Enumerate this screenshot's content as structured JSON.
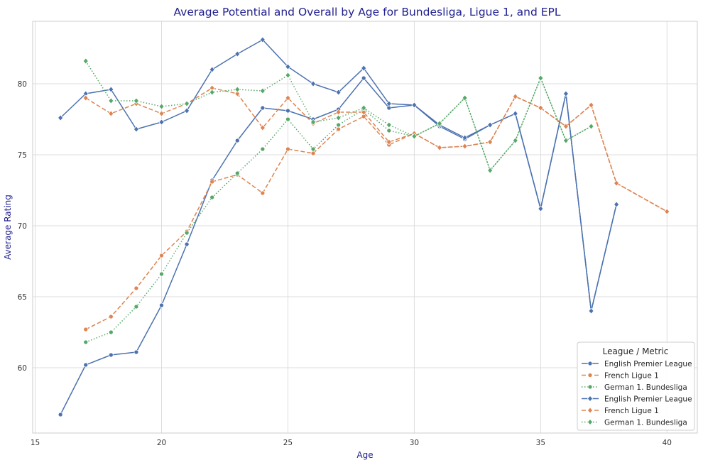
{
  "chart_data": {
    "type": "line",
    "title": "Average Potential and Overall by Age for Bundesliga, Ligue 1, and EPL",
    "xlabel": "Age",
    "ylabel": "Average Rating",
    "xlim": [
      14.9,
      41.2
    ],
    "ylim": [
      55.4,
      84.4
    ],
    "xticks": [
      15,
      20,
      25,
      30,
      35,
      40
    ],
    "yticks": [
      60,
      65,
      70,
      75,
      80
    ],
    "grid": true,
    "legend": {
      "title": "League / Metric",
      "placement": "bottom-right"
    },
    "series": [
      {
        "name": "English Premier League",
        "metric_group": "circle",
        "marker": "circle",
        "line_style": "solid",
        "color": "#4c72b0",
        "points": [
          [
            16,
            56.7
          ],
          [
            17,
            60.2
          ],
          [
            18,
            60.9
          ],
          [
            19,
            61.1
          ],
          [
            20,
            64.4
          ],
          [
            21,
            68.7
          ],
          [
            22,
            73.2
          ],
          [
            23,
            76.0
          ],
          [
            24,
            78.3
          ],
          [
            25,
            78.1
          ],
          [
            26,
            77.5
          ],
          [
            27,
            78.2
          ],
          [
            28,
            80.4
          ],
          [
            29,
            78.3
          ],
          [
            30,
            78.5
          ],
          [
            31,
            77.0
          ],
          [
            32,
            76.1
          ],
          [
            33,
            77.1
          ],
          [
            34,
            77.9
          ],
          [
            35,
            71.2
          ],
          [
            36,
            79.3
          ],
          [
            37,
            64.0
          ],
          [
            38,
            71.5
          ]
        ]
      },
      {
        "name": "French Ligue 1",
        "metric_group": "circle",
        "marker": "circle",
        "line_style": "dashed",
        "color": "#dd8452",
        "points": [
          [
            17,
            62.7
          ],
          [
            18,
            63.6
          ],
          [
            19,
            65.6
          ],
          [
            20,
            67.9
          ],
          [
            21,
            69.6
          ],
          [
            22,
            73.1
          ],
          [
            23,
            73.6
          ],
          [
            24,
            72.3
          ],
          [
            25,
            75.4
          ],
          [
            26,
            75.1
          ],
          [
            27,
            76.8
          ],
          [
            28,
            77.7
          ],
          [
            29,
            75.7
          ],
          [
            30,
            76.5
          ],
          [
            31,
            75.5
          ],
          [
            32,
            75.6
          ],
          [
            33,
            75.9
          ],
          [
            34,
            79.1
          ],
          [
            35,
            78.3
          ],
          [
            36,
            77.0
          ],
          [
            37,
            78.5
          ],
          [
            38,
            73.0
          ],
          [
            40,
            71.0
          ]
        ]
      },
      {
        "name": "German 1. Bundesliga",
        "metric_group": "circle",
        "marker": "circle",
        "line_style": "dotted",
        "color": "#55a868",
        "points": [
          [
            17,
            61.8
          ],
          [
            18,
            62.5
          ],
          [
            19,
            64.3
          ],
          [
            20,
            66.6
          ],
          [
            21,
            69.5
          ],
          [
            22,
            72.0
          ],
          [
            23,
            73.7
          ],
          [
            24,
            75.4
          ],
          [
            25,
            77.5
          ],
          [
            26,
            75.4
          ],
          [
            27,
            77.1
          ],
          [
            28,
            78.2
          ],
          [
            29,
            76.7
          ],
          [
            30,
            76.3
          ],
          [
            31,
            77.2
          ],
          [
            32,
            79.0
          ],
          [
            33,
            73.9
          ],
          [
            34,
            76.0
          ],
          [
            35,
            80.4
          ],
          [
            36,
            76.0
          ],
          [
            37,
            77.0
          ]
        ]
      },
      {
        "name": "English Premier League",
        "metric_group": "diamond",
        "marker": "diamond",
        "line_style": "solid",
        "color": "#4c72b0",
        "points": [
          [
            16,
            77.6
          ],
          [
            17,
            79.3
          ],
          [
            18,
            79.6
          ],
          [
            19,
            76.8
          ],
          [
            20,
            77.3
          ],
          [
            21,
            78.1
          ],
          [
            22,
            81.0
          ],
          [
            23,
            82.1
          ],
          [
            24,
            83.1
          ],
          [
            25,
            81.2
          ],
          [
            26,
            80.0
          ],
          [
            27,
            79.4
          ],
          [
            28,
            81.1
          ],
          [
            29,
            78.6
          ],
          [
            30,
            78.5
          ],
          [
            31,
            77.1
          ],
          [
            32,
            76.2
          ],
          [
            33,
            77.1
          ],
          [
            34,
            77.9
          ],
          [
            35,
            71.2
          ],
          [
            36,
            79.3
          ],
          [
            37,
            64.0
          ],
          [
            38,
            71.5
          ]
        ]
      },
      {
        "name": "French Ligue 1",
        "metric_group": "diamond",
        "marker": "diamond",
        "line_style": "dashed",
        "color": "#dd8452",
        "points": [
          [
            17,
            79.0
          ],
          [
            18,
            77.9
          ],
          [
            19,
            78.6
          ],
          [
            20,
            77.9
          ],
          [
            21,
            78.6
          ],
          [
            22,
            79.7
          ],
          [
            23,
            79.3
          ],
          [
            24,
            76.9
          ],
          [
            25,
            79.0
          ],
          [
            26,
            77.2
          ],
          [
            27,
            78.0
          ],
          [
            28,
            78.0
          ],
          [
            29,
            75.9
          ],
          [
            30,
            76.5
          ],
          [
            31,
            75.5
          ],
          [
            32,
            75.6
          ],
          [
            33,
            75.9
          ],
          [
            34,
            79.1
          ],
          [
            35,
            78.3
          ],
          [
            36,
            77.0
          ],
          [
            37,
            78.5
          ],
          [
            38,
            73.0
          ],
          [
            40,
            71.0
          ]
        ]
      },
      {
        "name": "German 1. Bundesliga",
        "metric_group": "diamond",
        "marker": "diamond",
        "line_style": "dotted",
        "color": "#55a868",
        "points": [
          [
            17,
            81.6
          ],
          [
            18,
            78.8
          ],
          [
            19,
            78.8
          ],
          [
            20,
            78.4
          ],
          [
            21,
            78.6
          ],
          [
            22,
            79.4
          ],
          [
            23,
            79.6
          ],
          [
            24,
            79.5
          ],
          [
            25,
            80.6
          ],
          [
            26,
            77.3
          ],
          [
            27,
            77.6
          ],
          [
            28,
            78.3
          ],
          [
            29,
            77.1
          ],
          [
            30,
            76.3
          ],
          [
            31,
            77.2
          ],
          [
            32,
            79.0
          ],
          [
            33,
            73.9
          ],
          [
            34,
            76.0
          ],
          [
            35,
            80.4
          ],
          [
            36,
            76.0
          ],
          [
            37,
            77.0
          ]
        ]
      }
    ]
  }
}
